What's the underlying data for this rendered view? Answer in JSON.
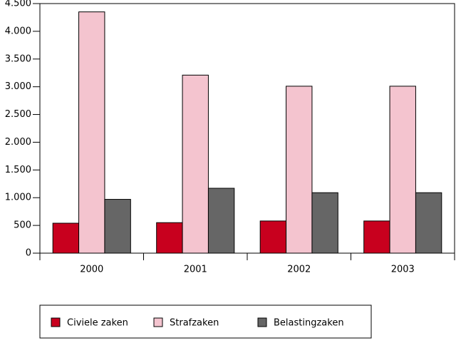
{
  "chart_data": {
    "type": "bar",
    "categories": [
      "2000",
      "2001",
      "2002",
      "2003"
    ],
    "series": [
      {
        "name": "Civiele zaken",
        "color": "#c8001e",
        "values": [
          540,
          550,
          580,
          580
        ]
      },
      {
        "name": "Strafzaken",
        "color": "#f4c4cf",
        "values": [
          4350,
          3210,
          3010,
          3010
        ]
      },
      {
        "name": "Belastingzaken",
        "color": "#666666",
        "values": [
          970,
          1170,
          1090,
          1090
        ]
      }
    ],
    "ylim": [
      0,
      4500
    ],
    "yticks": [
      0,
      500,
      {
        "value": 1000,
        "label": "1.000"
      },
      {
        "value": 1500,
        "label": "1.500"
      },
      {
        "value": 2000,
        "label": "2.000"
      },
      {
        "value": 2500,
        "label": "2.500"
      },
      {
        "value": 3000,
        "label": "3.000"
      },
      {
        "value": 3500,
        "label": "3.500"
      },
      {
        "value": 4000,
        "label": "4.000"
      },
      {
        "value": 4500,
        "label": "4.500"
      }
    ],
    "legend": "bottom"
  }
}
